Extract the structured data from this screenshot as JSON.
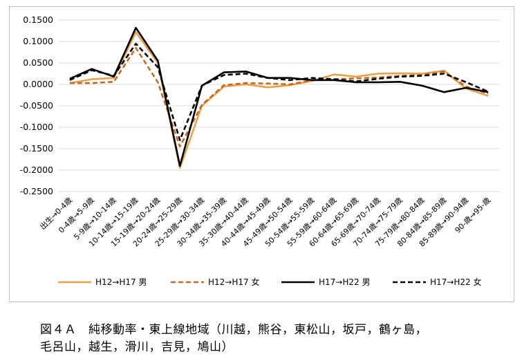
{
  "caption": {
    "line1": "図４Ａ　純移動率・東上線地域（川越，熊谷，東松山，坂戸，鶴ヶ島，",
    "line2": "毛呂山，越生，滑川，吉見，鳩山）"
  },
  "chart_data": {
    "type": "line",
    "title": "",
    "xlabel": "",
    "ylabel": "",
    "ylim": [
      -0.25,
      0.15
    ],
    "y_ticks": [
      "0.1500",
      "0.1000",
      "0.0500",
      "0.0000",
      "-0.0500",
      "-0.1000",
      "-0.1500",
      "-0.2000",
      "-0.2500"
    ],
    "y_tick_values": [
      0.15,
      0.1,
      0.05,
      0.0,
      -0.05,
      -0.1,
      -0.15,
      -0.2,
      -0.25
    ],
    "grid": "horizontal",
    "legend_position": "bottom",
    "categories": [
      "出生→0-4歳",
      "0-4歳→5-9歳",
      "5-9歳→10-14歳",
      "10-14歳→15-19歳",
      "15-19歳→20-24歳",
      "20-24歳→25-29歳",
      "25-29歳→30-34歳",
      "30-34歳→35-39歳",
      "35-30歳→40-44歳",
      "40-44歳→45-49歳",
      "45-49歳→50-54歳",
      "50-54歳→55-59歳",
      "55-59歳→60-64歳",
      "60-64歳→65-69歳",
      "65-69歳→70-74歳",
      "70-74歳→75-79歳",
      "75-79歳→80-84歳",
      "80-84歳→85-89歳",
      "85-89歳→90-94歳",
      "90-歳→95-歳"
    ],
    "series": [
      {
        "name": "H12→H17 男",
        "color": "#e8a04a",
        "dash": "solid",
        "values": [
          0.003,
          0.012,
          0.015,
          0.122,
          0.05,
          -0.195,
          -0.05,
          -0.005,
          0.0,
          -0.007,
          -0.002,
          0.008,
          0.023,
          0.018,
          0.025,
          0.026,
          0.025,
          0.032,
          -0.01,
          -0.027
        ]
      },
      {
        "name": "H12→H17 女",
        "color": "#c46a1e",
        "dash": "dashed",
        "values": [
          0.003,
          0.003,
          0.006,
          0.085,
          0.005,
          -0.145,
          -0.048,
          -0.002,
          0.003,
          0.002,
          0.0,
          0.01,
          0.012,
          0.014,
          0.016,
          0.02,
          0.022,
          0.03,
          -0.005,
          -0.022
        ]
      },
      {
        "name": "H17→H22 男",
        "color": "#000000",
        "dash": "solid",
        "values": [
          0.013,
          0.036,
          0.018,
          0.132,
          0.055,
          -0.19,
          -0.003,
          0.028,
          0.03,
          0.015,
          0.015,
          0.01,
          0.01,
          0.005,
          0.005,
          0.006,
          -0.003,
          -0.018,
          -0.008,
          -0.018
        ]
      },
      {
        "name": "H17→H22 女",
        "color": "#000000",
        "dash": "dashed",
        "values": [
          0.01,
          0.033,
          0.02,
          0.095,
          0.04,
          -0.13,
          -0.003,
          0.022,
          0.025,
          0.015,
          0.01,
          0.015,
          0.012,
          0.007,
          0.013,
          0.018,
          0.02,
          0.025,
          0.005,
          -0.017
        ]
      }
    ]
  }
}
